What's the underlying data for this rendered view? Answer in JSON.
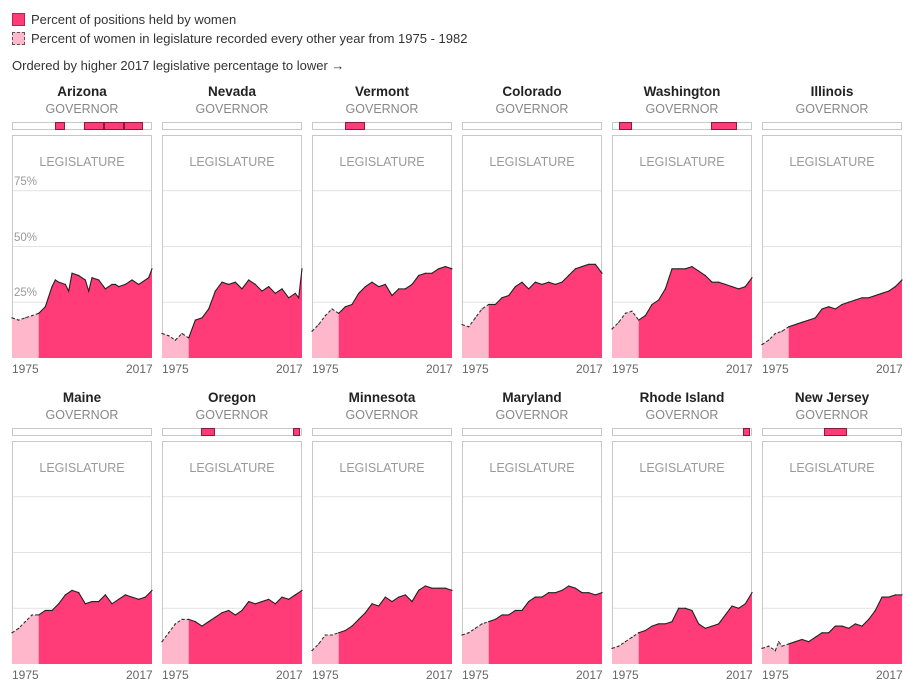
{
  "legend": {
    "solid_label": "Percent of positions held by women",
    "dashed_label": "Percent of women in legislature recorded every other year from 1975 - 1982"
  },
  "order_note": "Ordered by higher 2017 legislative percentage to lower →",
  "labels": {
    "governor": "GOVERNOR",
    "legislature": "LEGISLATURE",
    "start_year": "1975",
    "end_year": "2017"
  },
  "y_ticks": [
    "75%",
    "50%",
    "25%"
  ],
  "colors": {
    "accent": "#ff3c78",
    "light": "#ffb7cb",
    "outline": "#c8c8c8"
  },
  "chart_data": {
    "type": "area",
    "x_range": [
      1975,
      2017
    ],
    "y_range": [
      0,
      100
    ],
    "y_ticks": [
      25,
      50,
      75
    ],
    "grid": true,
    "x_dashed_until": 1983,
    "states": [
      {
        "name": "Arizona",
        "governor_years": [
          [
            1988,
            1991
          ],
          [
            1997,
            2003
          ],
          [
            2003,
            2009
          ],
          [
            2009,
            2015
          ]
        ],
        "legislature": [
          [
            1975,
            18
          ],
          [
            1977,
            17
          ],
          [
            1979,
            18
          ],
          [
            1981,
            19
          ],
          [
            1983,
            20
          ],
          [
            1985,
            23
          ],
          [
            1987,
            32
          ],
          [
            1988,
            35
          ],
          [
            1989,
            34
          ],
          [
            1991,
            33
          ],
          [
            1992,
            30
          ],
          [
            1993,
            38
          ],
          [
            1995,
            37
          ],
          [
            1997,
            35
          ],
          [
            1998,
            30
          ],
          [
            1999,
            36
          ],
          [
            2001,
            35
          ],
          [
            2003,
            31
          ],
          [
            2005,
            33
          ],
          [
            2006,
            33
          ],
          [
            2007,
            32
          ],
          [
            2009,
            33
          ],
          [
            2011,
            35
          ],
          [
            2013,
            33
          ],
          [
            2015,
            35
          ],
          [
            2016,
            36
          ],
          [
            2017,
            40
          ]
        ]
      },
      {
        "name": "Nevada",
        "governor_years": [],
        "legislature": [
          [
            1975,
            11
          ],
          [
            1977,
            10
          ],
          [
            1979,
            8
          ],
          [
            1981,
            11
          ],
          [
            1983,
            9
          ],
          [
            1985,
            17
          ],
          [
            1987,
            18
          ],
          [
            1989,
            22
          ],
          [
            1991,
            30
          ],
          [
            1993,
            34
          ],
          [
            1995,
            33
          ],
          [
            1997,
            34
          ],
          [
            1999,
            31
          ],
          [
            2001,
            35
          ],
          [
            2003,
            33
          ],
          [
            2005,
            30
          ],
          [
            2007,
            32
          ],
          [
            2009,
            29
          ],
          [
            2011,
            31
          ],
          [
            2013,
            27
          ],
          [
            2015,
            29
          ],
          [
            2016,
            27
          ],
          [
            2017,
            40
          ]
        ]
      },
      {
        "name": "Vermont",
        "governor_years": [
          [
            1985,
            1991
          ]
        ],
        "legislature": [
          [
            1975,
            12
          ],
          [
            1977,
            15
          ],
          [
            1979,
            19
          ],
          [
            1981,
            22
          ],
          [
            1983,
            20
          ],
          [
            1985,
            23
          ],
          [
            1987,
            24
          ],
          [
            1989,
            29
          ],
          [
            1991,
            32
          ],
          [
            1993,
            34
          ],
          [
            1995,
            32
          ],
          [
            1997,
            33
          ],
          [
            1999,
            28
          ],
          [
            2001,
            31
          ],
          [
            2003,
            31
          ],
          [
            2005,
            33
          ],
          [
            2007,
            37
          ],
          [
            2009,
            38
          ],
          [
            2011,
            38
          ],
          [
            2013,
            40
          ],
          [
            2015,
            41
          ],
          [
            2017,
            40
          ]
        ]
      },
      {
        "name": "Colorado",
        "governor_years": [],
        "legislature": [
          [
            1975,
            15
          ],
          [
            1977,
            14
          ],
          [
            1979,
            18
          ],
          [
            1981,
            22
          ],
          [
            1983,
            24
          ],
          [
            1985,
            24
          ],
          [
            1987,
            27
          ],
          [
            1989,
            28
          ],
          [
            1991,
            32
          ],
          [
            1993,
            34
          ],
          [
            1995,
            31
          ],
          [
            1997,
            34
          ],
          [
            1999,
            33
          ],
          [
            2001,
            34
          ],
          [
            2003,
            33
          ],
          [
            2005,
            34
          ],
          [
            2007,
            37
          ],
          [
            2009,
            40
          ],
          [
            2011,
            41
          ],
          [
            2013,
            42
          ],
          [
            2015,
            42
          ],
          [
            2017,
            38
          ]
        ]
      },
      {
        "name": "Washington",
        "governor_years": [
          [
            1977,
            1981
          ],
          [
            2005,
            2013
          ]
        ],
        "legislature": [
          [
            1975,
            13
          ],
          [
            1977,
            16
          ],
          [
            1979,
            20
          ],
          [
            1981,
            21
          ],
          [
            1983,
            17
          ],
          [
            1985,
            19
          ],
          [
            1987,
            24
          ],
          [
            1989,
            26
          ],
          [
            1991,
            31
          ],
          [
            1993,
            40
          ],
          [
            1995,
            40
          ],
          [
            1997,
            40
          ],
          [
            1999,
            41
          ],
          [
            2001,
            39
          ],
          [
            2003,
            37
          ],
          [
            2005,
            34
          ],
          [
            2007,
            34
          ],
          [
            2009,
            33
          ],
          [
            2011,
            32
          ],
          [
            2013,
            31
          ],
          [
            2015,
            32
          ],
          [
            2017,
            36
          ]
        ]
      },
      {
        "name": "Illinois",
        "governor_years": [],
        "legislature": [
          [
            1975,
            6
          ],
          [
            1977,
            8
          ],
          [
            1979,
            11
          ],
          [
            1981,
            12
          ],
          [
            1983,
            14
          ],
          [
            1985,
            15
          ],
          [
            1987,
            16
          ],
          [
            1989,
            17
          ],
          [
            1991,
            18
          ],
          [
            1993,
            22
          ],
          [
            1995,
            23
          ],
          [
            1997,
            22
          ],
          [
            1999,
            24
          ],
          [
            2001,
            25
          ],
          [
            2003,
            26
          ],
          [
            2005,
            27
          ],
          [
            2007,
            27
          ],
          [
            2009,
            28
          ],
          [
            2011,
            29
          ],
          [
            2013,
            30
          ],
          [
            2015,
            32
          ],
          [
            2017,
            35
          ]
        ]
      },
      {
        "name": "Maine",
        "governor_years": [],
        "legislature": [
          [
            1975,
            14
          ],
          [
            1977,
            16
          ],
          [
            1979,
            19
          ],
          [
            1981,
            22
          ],
          [
            1983,
            22
          ],
          [
            1985,
            24
          ],
          [
            1987,
            24
          ],
          [
            1989,
            27
          ],
          [
            1991,
            31
          ],
          [
            1993,
            33
          ],
          [
            1995,
            32
          ],
          [
            1997,
            27
          ],
          [
            1999,
            28
          ],
          [
            2001,
            28
          ],
          [
            2003,
            31
          ],
          [
            2005,
            27
          ],
          [
            2007,
            29
          ],
          [
            2009,
            31
          ],
          [
            2011,
            30
          ],
          [
            2013,
            29
          ],
          [
            2015,
            30
          ],
          [
            2017,
            33
          ]
        ]
      },
      {
        "name": "Oregon",
        "governor_years": [
          [
            1987,
            1991
          ],
          [
            2015,
            2017
          ]
        ],
        "legislature": [
          [
            1975,
            10
          ],
          [
            1977,
            14
          ],
          [
            1979,
            18
          ],
          [
            1981,
            20
          ],
          [
            1983,
            20
          ],
          [
            1985,
            19
          ],
          [
            1987,
            17
          ],
          [
            1989,
            19
          ],
          [
            1991,
            21
          ],
          [
            1993,
            23
          ],
          [
            1995,
            24
          ],
          [
            1997,
            22
          ],
          [
            1999,
            24
          ],
          [
            2001,
            28
          ],
          [
            2003,
            27
          ],
          [
            2005,
            28
          ],
          [
            2007,
            29
          ],
          [
            2009,
            27
          ],
          [
            2011,
            30
          ],
          [
            2013,
            29
          ],
          [
            2015,
            31
          ],
          [
            2017,
            33
          ]
        ]
      },
      {
        "name": "Minnesota",
        "governor_years": [],
        "legislature": [
          [
            1975,
            6
          ],
          [
            1977,
            9
          ],
          [
            1979,
            13
          ],
          [
            1981,
            13
          ],
          [
            1983,
            14
          ],
          [
            1985,
            15
          ],
          [
            1987,
            17
          ],
          [
            1989,
            20
          ],
          [
            1991,
            23
          ],
          [
            1993,
            27
          ],
          [
            1995,
            26
          ],
          [
            1997,
            30
          ],
          [
            1999,
            28
          ],
          [
            2001,
            30
          ],
          [
            2003,
            31
          ],
          [
            2005,
            28
          ],
          [
            2007,
            33
          ],
          [
            2009,
            35
          ],
          [
            2011,
            34
          ],
          [
            2013,
            34
          ],
          [
            2015,
            34
          ],
          [
            2017,
            33
          ]
        ]
      },
      {
        "name": "Maryland",
        "governor_years": [],
        "legislature": [
          [
            1975,
            13
          ],
          [
            1977,
            14
          ],
          [
            1979,
            16
          ],
          [
            1981,
            18
          ],
          [
            1983,
            19
          ],
          [
            1985,
            20
          ],
          [
            1987,
            22
          ],
          [
            1989,
            22
          ],
          [
            1991,
            24
          ],
          [
            1993,
            24
          ],
          [
            1995,
            28
          ],
          [
            1997,
            30
          ],
          [
            1999,
            30
          ],
          [
            2001,
            32
          ],
          [
            2003,
            32
          ],
          [
            2005,
            33
          ],
          [
            2007,
            35
          ],
          [
            2009,
            34
          ],
          [
            2011,
            32
          ],
          [
            2013,
            32
          ],
          [
            2015,
            31
          ],
          [
            2017,
            32
          ]
        ]
      },
      {
        "name": "Rhode Island",
        "governor_years": [
          [
            2015,
            2017
          ]
        ],
        "legislature": [
          [
            1975,
            7
          ],
          [
            1977,
            8
          ],
          [
            1979,
            10
          ],
          [
            1981,
            12
          ],
          [
            1983,
            14
          ],
          [
            1985,
            15
          ],
          [
            1987,
            17
          ],
          [
            1989,
            18
          ],
          [
            1991,
            18
          ],
          [
            1993,
            19
          ],
          [
            1995,
            25
          ],
          [
            1997,
            25
          ],
          [
            1999,
            24
          ],
          [
            2001,
            18
          ],
          [
            2003,
            16
          ],
          [
            2005,
            17
          ],
          [
            2007,
            18
          ],
          [
            2009,
            22
          ],
          [
            2011,
            26
          ],
          [
            2013,
            25
          ],
          [
            2015,
            27
          ],
          [
            2017,
            32
          ]
        ]
      },
      {
        "name": "New Jersey",
        "governor_years": [
          [
            1994,
            2001
          ]
        ],
        "legislature": [
          [
            1975,
            7
          ],
          [
            1977,
            8
          ],
          [
            1979,
            6
          ],
          [
            1980,
            10
          ],
          [
            1981,
            8
          ],
          [
            1983,
            9
          ],
          [
            1985,
            10
          ],
          [
            1987,
            11
          ],
          [
            1989,
            10
          ],
          [
            1991,
            12
          ],
          [
            1993,
            14
          ],
          [
            1995,
            14
          ],
          [
            1997,
            17
          ],
          [
            1999,
            17
          ],
          [
            2001,
            16
          ],
          [
            2003,
            18
          ],
          [
            2005,
            17
          ],
          [
            2007,
            20
          ],
          [
            2009,
            24
          ],
          [
            2011,
            30
          ],
          [
            2013,
            30
          ],
          [
            2015,
            31
          ],
          [
            2017,
            31
          ]
        ]
      }
    ]
  }
}
